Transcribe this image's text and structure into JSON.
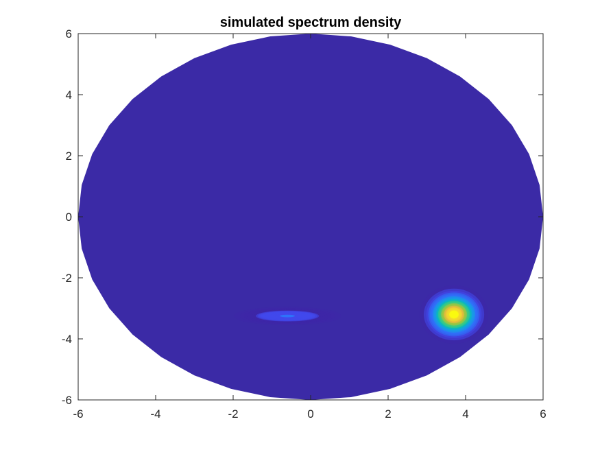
{
  "chart_data": {
    "type": "heatmap",
    "title": "simulated spectrum density",
    "xlabel": "",
    "ylabel": "",
    "xlim": [
      -6,
      6
    ],
    "ylim": [
      -6,
      6
    ],
    "xticks": [
      -6,
      -4,
      -2,
      0,
      2,
      4,
      6
    ],
    "yticks": [
      -6,
      -4,
      -2,
      0,
      2,
      4,
      6
    ],
    "xtick_labels": [
      "-6",
      "-4",
      "-2",
      "0",
      "2",
      "4",
      "6"
    ],
    "ytick_labels": [
      "-6",
      "-4",
      "-2",
      "0",
      "2",
      "4",
      "6"
    ],
    "grid": false,
    "domain": {
      "shape": "disk",
      "center": [
        0,
        0
      ],
      "radius": 6
    },
    "background_level": 0,
    "peaks": [
      {
        "x": 3.7,
        "y": -3.2,
        "peak_level": 1.0,
        "sigma_x": 0.35,
        "sigma_y": 0.38
      },
      {
        "x": -0.6,
        "y": -3.25,
        "peak_level": 0.18,
        "sigma_x": 0.55,
        "sigma_y": 0.12
      }
    ],
    "colormap": [
      "#3e26a8",
      "#4148ed",
      "#2e74fb",
      "#16a0e3",
      "#08bfb3",
      "#43cc7a",
      "#a9c43a",
      "#f6ba3d",
      "#f5de2a",
      "#f9fb0e"
    ]
  },
  "colors": {
    "axis": "#262626",
    "background_fill": "#3b2aa6"
  }
}
